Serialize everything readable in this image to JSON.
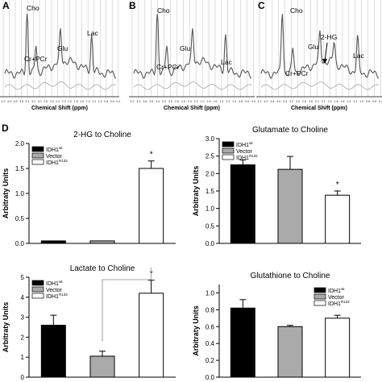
{
  "figure": {
    "spectra_panels": [
      {
        "letter": "A",
        "peaks": [
          "Cho",
          "Cr+PCr",
          "Glu",
          "Lac"
        ]
      },
      {
        "letter": "B",
        "peaks": [
          "Cho",
          "Cr+PCr",
          "Glu",
          "Lac"
        ]
      },
      {
        "letter": "C",
        "peaks": [
          "Cho",
          "Cr+PCr",
          "Glu",
          "2-HG",
          "Lac"
        ]
      }
    ],
    "spectra_xlabel": "Chemical Shift (ppm)",
    "spectra_ticks": [
      "4.2",
      "4.0",
      "3.8",
      "3.6",
      "3.4",
      "3.2",
      "3.0",
      "2.8",
      "2.6",
      "2.4",
      "2.2",
      "2.0",
      "1.8",
      "1.6",
      "1.4",
      "1.2",
      "1.0",
      "0.8",
      "0.6",
      "0.4"
    ],
    "panel_d_letter": "D",
    "legend_labels": [
      "IDH1",
      "Vector",
      "IDH1"
    ],
    "legend_superscripts": [
      "wt",
      "",
      "R132"
    ],
    "colors": {
      "idh_wt": "#000000",
      "vector": "#aaaaaa",
      "idh_r132": "#ffffff",
      "spectrum_fit": "#555555",
      "spectrum_residual": "#999999"
    }
  },
  "chart_data": [
    {
      "type": "bar",
      "title": "2-HG to Choline",
      "ylabel": "Arbitraty Units",
      "categories": [
        "IDH1 wt",
        "Vector",
        "IDH1 R132"
      ],
      "values": [
        0.05,
        0.05,
        1.5
      ],
      "errors": [
        0,
        0,
        0.15
      ],
      "ylim": [
        0,
        2.0
      ],
      "yticks": [
        "0.0",
        "0.5",
        "1.0",
        "1.5",
        "2.0"
      ],
      "significance": [
        "",
        "",
        "*"
      ],
      "legend": "top-left"
    },
    {
      "type": "bar",
      "title": "Glutamate to Choline",
      "ylabel": "Arbitraty Units",
      "categories": [
        "IDH1 wt",
        "Vector",
        "IDH1 R132"
      ],
      "values": [
        2.25,
        2.12,
        1.38
      ],
      "errors": [
        0.14,
        0.37,
        0.12
      ],
      "ylim": [
        0,
        3.0
      ],
      "yticks": [
        "0.0",
        "0.5",
        "1.0",
        "1.5",
        "2.0",
        "2.5",
        "3.0"
      ],
      "significance": [
        "",
        "",
        "*"
      ],
      "legend": "top-left"
    },
    {
      "type": "bar",
      "title": "Lactate to Choline",
      "ylabel": "Arbitraty Units",
      "categories": [
        "IDH1 wt",
        "Vector",
        "IDH1 R132"
      ],
      "values": [
        2.6,
        1.05,
        4.2
      ],
      "errors": [
        0.5,
        0.25,
        0.65
      ],
      "ylim": [
        0,
        5
      ],
      "yticks": [
        "0",
        "1",
        "2",
        "3",
        "4",
        "5"
      ],
      "significance": [
        "",
        "",
        "*"
      ],
      "bracket": [
        "Vector",
        "IDH1 R132"
      ],
      "legend": "top-left"
    },
    {
      "type": "bar",
      "title": "Glutathione to Choline",
      "ylabel": "Arbitraty Units",
      "categories": [
        "IDH1 wt",
        "Vector",
        "IDH1 R132"
      ],
      "values": [
        0.82,
        0.6,
        0.7
      ],
      "errors": [
        0.1,
        0.015,
        0.035
      ],
      "ylim": [
        0,
        1.1
      ],
      "yticks": [
        "0.0",
        "0.2",
        "0.4",
        "0.6",
        "0.8",
        "1.0"
      ],
      "significance": [
        "",
        "",
        ""
      ],
      "legend": "top-right"
    }
  ]
}
